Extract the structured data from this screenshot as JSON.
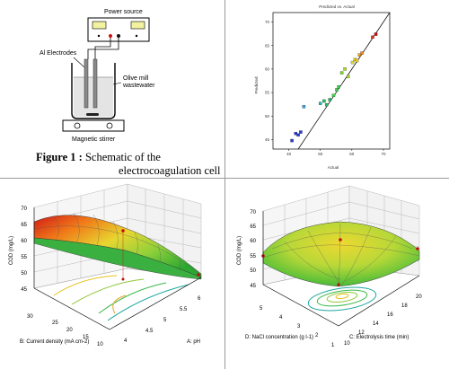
{
  "schematic": {
    "power_source": "Power source",
    "electrodes": "Al Electrodes",
    "wastewater_line1": "Olive mill",
    "wastewater_line2": "wastewater",
    "stirrer": "Magnetic stirrer",
    "caption_label": "Figure 1 :",
    "caption_line1": "Schematic of  the",
    "caption_line2": "electrocoagulation cell"
  },
  "pva": {
    "title": "Predicted vs. Actual",
    "xlabel": "Actual",
    "ylabel": "Predicted",
    "xticks": [
      "40",
      "50",
      "60",
      "70"
    ],
    "yticks": [
      "45",
      "50",
      "55",
      "60",
      "65",
      "70"
    ]
  },
  "surf1": {
    "zlabel": "COD (mg/L)",
    "zticks": [
      "45",
      "50",
      "55",
      "60",
      "65",
      "70"
    ],
    "b_label": "B: Current density (mA cm-2)",
    "b_ticks": [
      "30",
      "25",
      "20",
      "15",
      "10"
    ],
    "a_label": "A: pH",
    "a_ticks": [
      "4",
      "4.5",
      "5",
      "5.5",
      "6"
    ]
  },
  "surf2": {
    "zlabel": "COD (mg/L)",
    "zticks": [
      "45",
      "50",
      "55",
      "60",
      "65",
      "70"
    ],
    "d_label": "D: NaCl concentration (g l-1)",
    "d_ticks": [
      "5",
      "4",
      "3",
      "2",
      "1"
    ],
    "c_label": "C: Electrolysis time (min)",
    "c_ticks": [
      "10",
      "12",
      "14",
      "16",
      "18",
      "20"
    ]
  },
  "chart_data": [
    {
      "type": "scatter",
      "title": "Predicted vs. Actual",
      "xlabel": "Actual",
      "ylabel": "Predicted",
      "xlim": [
        35,
        72
      ],
      "ylim": [
        43,
        72
      ],
      "reference_line": "y = x",
      "points": [
        {
          "x": 41.0,
          "y": 44.8,
          "color": "#2a3ad6"
        },
        {
          "x": 42.2,
          "y": 46.3,
          "color": "#2a3ad6"
        },
        {
          "x": 43.0,
          "y": 46.0,
          "color": "#2a3ad6"
        },
        {
          "x": 43.8,
          "y": 46.6,
          "color": "#2a3ad6"
        },
        {
          "x": 44.8,
          "y": 52.0,
          "color": "#3a9ee0"
        },
        {
          "x": 50.0,
          "y": 52.7,
          "color": "#22b8b0"
        },
        {
          "x": 51.2,
          "y": 53.2,
          "color": "#20c060"
        },
        {
          "x": 52.0,
          "y": 52.4,
          "color": "#20c060"
        },
        {
          "x": 53.0,
          "y": 53.5,
          "color": "#20c060"
        },
        {
          "x": 54.2,
          "y": 54.4,
          "color": "#3ed24a"
        },
        {
          "x": 55.2,
          "y": 55.6,
          "color": "#3ed24a"
        },
        {
          "x": 55.8,
          "y": 56.2,
          "color": "#3ed24a"
        },
        {
          "x": 56.8,
          "y": 59.2,
          "color": "#7ed43a"
        },
        {
          "x": 57.8,
          "y": 60.0,
          "color": "#a8dc2a"
        },
        {
          "x": 58.8,
          "y": 58.4,
          "color": "#a8dc2a"
        },
        {
          "x": 60.2,
          "y": 61.4,
          "color": "#d6de24"
        },
        {
          "x": 61.0,
          "y": 62.0,
          "color": "#e8c820"
        },
        {
          "x": 61.6,
          "y": 61.8,
          "color": "#e8c820"
        },
        {
          "x": 62.4,
          "y": 63.0,
          "color": "#f0a020"
        },
        {
          "x": 63.2,
          "y": 63.4,
          "color": "#f08a20"
        },
        {
          "x": 66.6,
          "y": 66.8,
          "color": "#e03020"
        },
        {
          "x": 67.6,
          "y": 67.4,
          "color": "#c81010"
        }
      ]
    }
  ]
}
